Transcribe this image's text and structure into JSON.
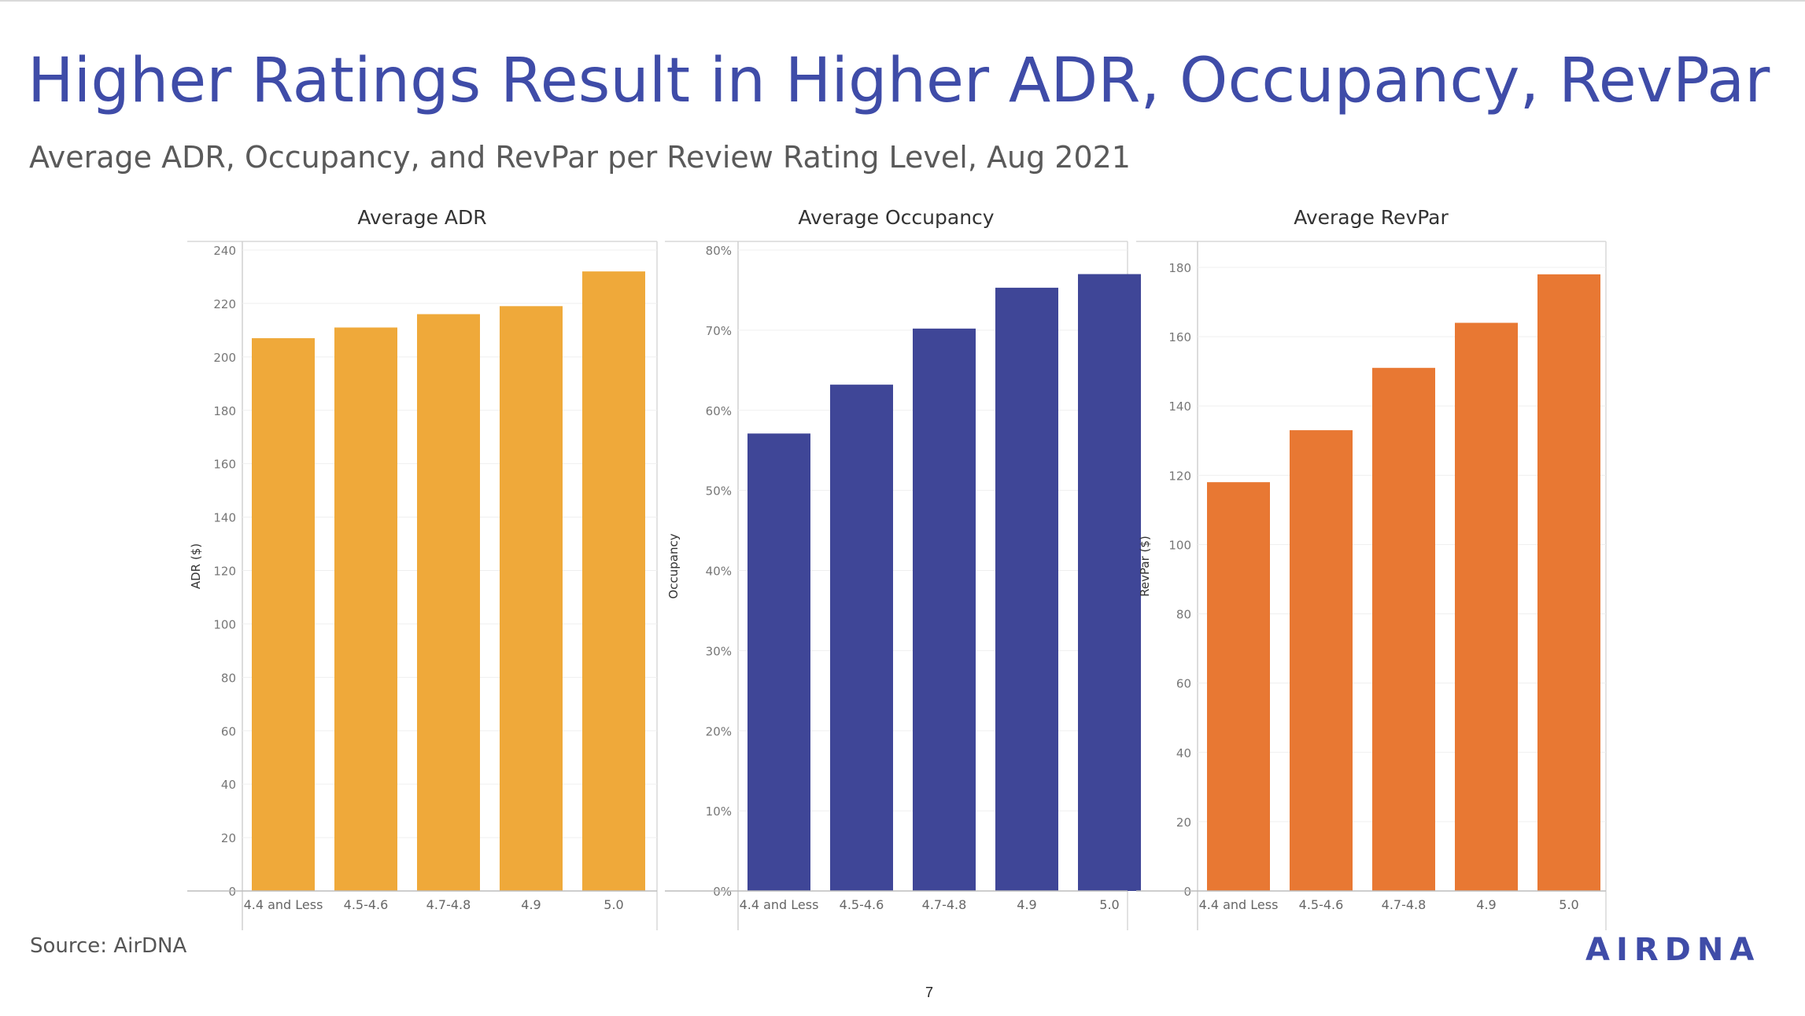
{
  "slide": {
    "title": "Higher Ratings Result in Higher ADR, Occupancy, RevPar",
    "subtitle": "Average ADR, Occupancy, and RevPar per Review Rating Level, Aug 2021",
    "source": "Source: AirDNA",
    "page_number": "7",
    "logo_text": "AIRDNA"
  },
  "chart_data": [
    {
      "type": "bar",
      "title": "Average ADR",
      "ylabel": "ADR ($)",
      "xlabel": "",
      "categories": [
        "4.4 and Less",
        "4.5-4.6",
        "4.7-4.8",
        "4.9",
        "5.0"
      ],
      "values": [
        207,
        211,
        216,
        219,
        232
      ],
      "ylim": [
        0,
        240
      ],
      "yticks": [
        0,
        20,
        40,
        60,
        80,
        100,
        120,
        140,
        160,
        180,
        200,
        220,
        240
      ],
      "ytick_labels": [
        "0",
        "20",
        "40",
        "60",
        "80",
        "100",
        "120",
        "140",
        "160",
        "180",
        "200",
        "220",
        "240"
      ],
      "color": "#efa93a",
      "grid": true
    },
    {
      "type": "bar",
      "title": "Average Occupancy",
      "ylabel": "Occupancy",
      "xlabel": "",
      "categories": [
        "4.4 and Less",
        "4.5-4.6",
        "4.7-4.8",
        "4.9",
        "5.0"
      ],
      "values": [
        0.571,
        0.632,
        0.702,
        0.753,
        0.77
      ],
      "ylim": [
        0,
        0.8
      ],
      "yticks": [
        0,
        0.1,
        0.2,
        0.3,
        0.4,
        0.5,
        0.6,
        0.7,
        0.8
      ],
      "ytick_labels": [
        "0%",
        "10%",
        "20%",
        "30%",
        "40%",
        "50%",
        "60%",
        "70%",
        "80%"
      ],
      "color": "#3f4697",
      "grid": true
    },
    {
      "type": "bar",
      "title": "Average RevPar",
      "ylabel": "RevPar ($)",
      "xlabel": "",
      "categories": [
        "4.4 and Less",
        "4.5-4.6",
        "4.7-4.8",
        "4.9",
        "5.0"
      ],
      "values": [
        118,
        133,
        151,
        164,
        178
      ],
      "ylim": [
        0,
        185
      ],
      "yticks": [
        0,
        20,
        40,
        60,
        80,
        100,
        120,
        140,
        160,
        180
      ],
      "ytick_labels": [
        "0",
        "20",
        "40",
        "60",
        "80",
        "100",
        "120",
        "140",
        "160",
        "180"
      ],
      "color": "#e87833",
      "grid": true
    }
  ]
}
